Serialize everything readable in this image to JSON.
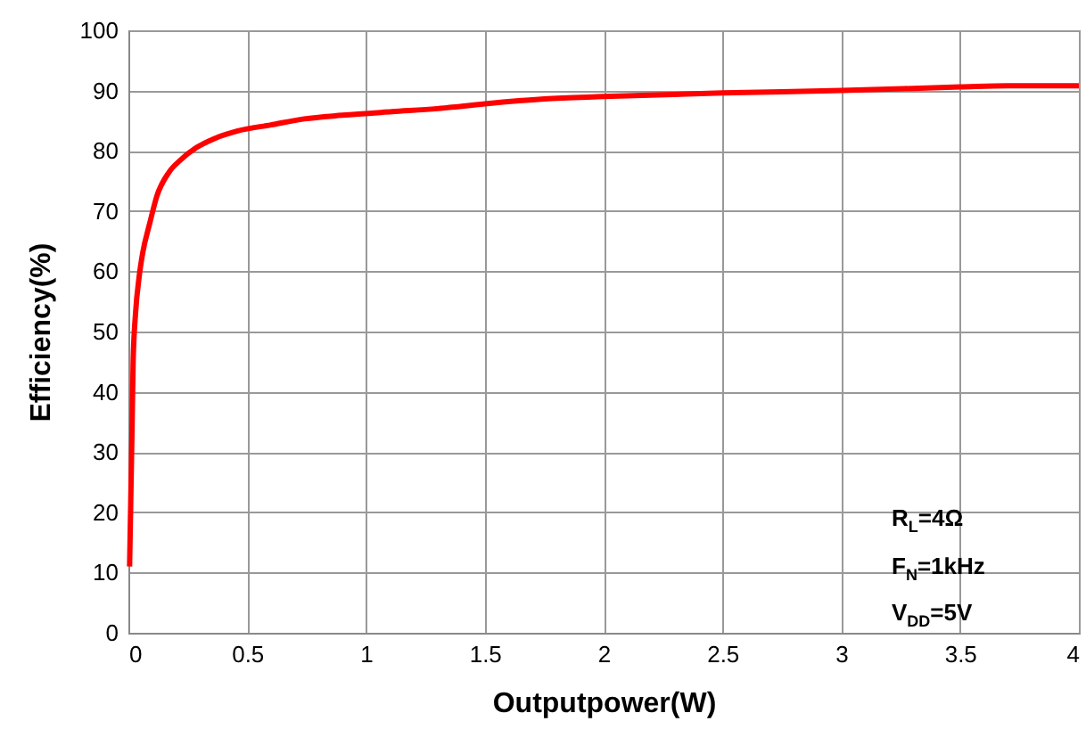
{
  "chart_data": {
    "type": "line",
    "xlabel": "Outputpower(W)",
    "ylabel": "Efficiency(%)",
    "x": [
      0.005,
      0.01,
      0.015,
      0.02,
      0.03,
      0.045,
      0.06,
      0.09,
      0.12,
      0.17,
      0.22,
      0.285,
      0.36,
      0.46,
      0.6,
      0.74,
      0.9,
      1.11,
      1.3,
      1.5,
      1.75,
      2,
      2.5,
      3,
      3.5,
      3.7,
      4
    ],
    "series": [
      {
        "color": "#ff0000",
        "values": [
          11,
          22,
          33,
          45,
          53,
          59,
          63,
          68,
          72.5,
          76.4,
          78.5,
          80.5,
          82,
          83.3,
          84.3,
          85.3,
          85.9,
          86.5,
          87,
          87.8,
          88.6,
          89,
          89.6,
          90,
          90.6,
          90.8,
          90.8
        ]
      }
    ],
    "xlim": [
      0,
      4
    ],
    "xticks": [
      0,
      0.5,
      1,
      1.5,
      2,
      2.5,
      3,
      3.5,
      4
    ],
    "ylim": [
      0,
      100
    ],
    "yticks": [
      0,
      10,
      20,
      30,
      40,
      50,
      60,
      70,
      80,
      90,
      100
    ],
    "grid": true,
    "line_style": "solid",
    "marker": "none",
    "annotations": [
      "R$_{L}$=4Ω",
      "F$_{N}$=1kHz",
      "V$_{DD}$=5V"
    ]
  }
}
